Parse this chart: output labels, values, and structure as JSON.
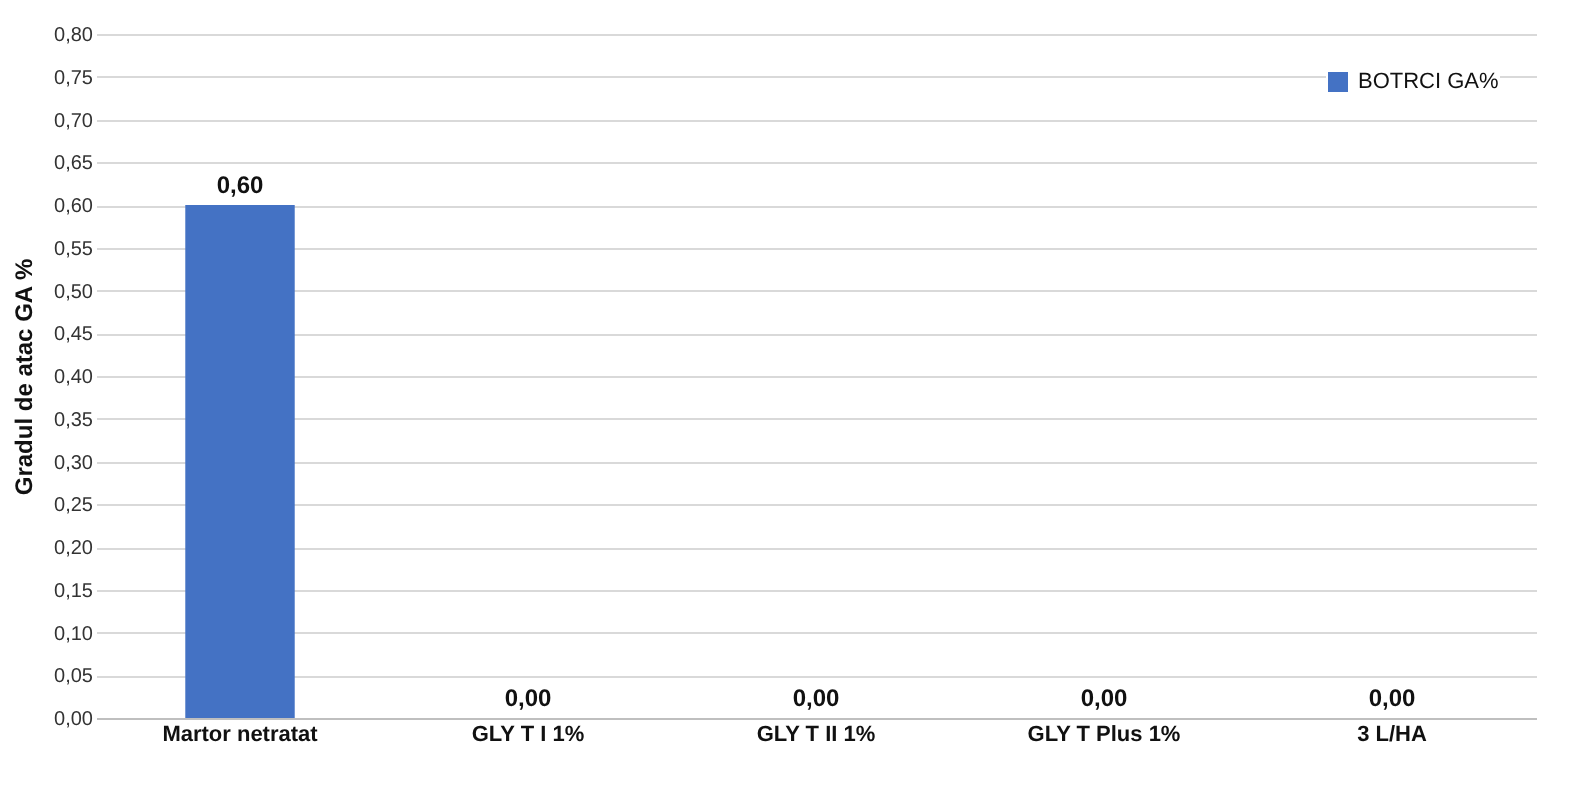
{
  "chart_data": {
    "type": "bar",
    "ylabel": "Gradul de atac GA %",
    "categories": [
      "Martor netratat",
      "GLY T I 1%",
      "GLY T II 1%",
      "GLY T Plus 1%",
      "3 L/HA"
    ],
    "series": [
      {
        "name": "BOTRCI GA%",
        "color": "#4472c4",
        "values": [
          0.6,
          0,
          0,
          0,
          0
        ],
        "value_labels": [
          "0,60",
          "0,00",
          "0,00",
          "0,00",
          "0,00"
        ]
      }
    ],
    "ylim": [
      0,
      0.8
    ],
    "yticks": [
      {
        "value": 0,
        "label": "0,00"
      },
      {
        "value": 0.05,
        "label": "0,05"
      },
      {
        "value": 0.1,
        "label": "0,10"
      },
      {
        "value": 0.15,
        "label": "0,15"
      },
      {
        "value": 0.2,
        "label": "0,20"
      },
      {
        "value": 0.25,
        "label": "0,25"
      },
      {
        "value": 0.3,
        "label": "0,30"
      },
      {
        "value": 0.35,
        "label": "0,35"
      },
      {
        "value": 0.4,
        "label": "0,40"
      },
      {
        "value": 0.45,
        "label": "0,45"
      },
      {
        "value": 0.5,
        "label": "0,50"
      },
      {
        "value": 0.55,
        "label": "0,55"
      },
      {
        "value": 0.6,
        "label": "0,60"
      },
      {
        "value": 0.65,
        "label": "0,65"
      },
      {
        "value": 0.7,
        "label": "0,70"
      },
      {
        "value": 0.75,
        "label": "0,75"
      },
      {
        "value": 0.8,
        "label": "0,80"
      }
    ],
    "grid": "y",
    "legend": "top right"
  }
}
